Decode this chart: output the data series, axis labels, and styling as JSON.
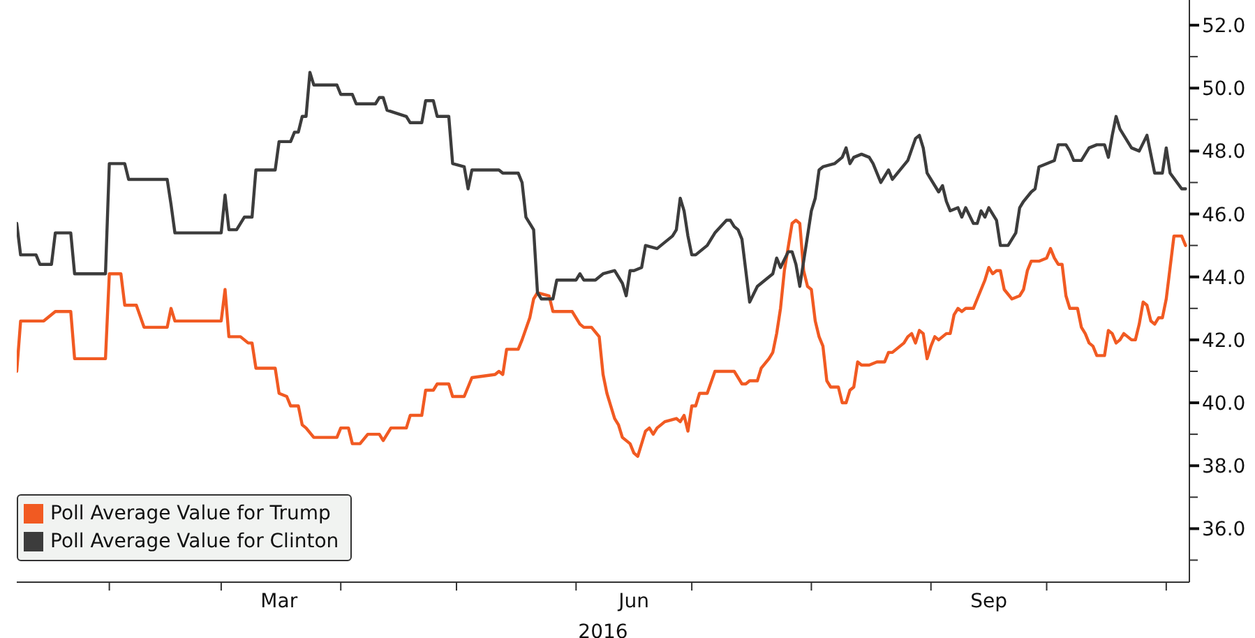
{
  "chart_data": {
    "type": "line",
    "xlabel": "2016",
    "legend": "bottom left",
    "xlim": [
      "2016-01-08",
      "2016-11-07"
    ],
    "xticks": [
      {
        "value": "2016-02-01",
        "label": null
      },
      {
        "value": "2016-03-01",
        "label": null
      },
      {
        "value": "2016-03-16",
        "label": "Mar"
      },
      {
        "value": "2016-04-01",
        "label": null
      },
      {
        "value": "2016-05-01",
        "label": null
      },
      {
        "value": "2016-06-01",
        "label": null
      },
      {
        "value": "2016-06-16",
        "label": "Jun"
      },
      {
        "value": "2016-07-01",
        "label": null
      },
      {
        "value": "2016-08-01",
        "label": null
      },
      {
        "value": "2016-09-01",
        "label": null
      },
      {
        "value": "2016-09-16",
        "label": "Sep"
      },
      {
        "value": "2016-10-01",
        "label": null
      },
      {
        "value": "2016-11-01",
        "label": null
      }
    ],
    "ylim": [
      34.3,
      52.8
    ],
    "yticks": [
      {
        "value": 35,
        "label": null
      },
      {
        "value": 36,
        "label": "36.0"
      },
      {
        "value": 37,
        "label": null
      },
      {
        "value": 38,
        "label": "38.0"
      },
      {
        "value": 39,
        "label": null
      },
      {
        "value": 40,
        "label": "40.0"
      },
      {
        "value": 41,
        "label": null
      },
      {
        "value": 42,
        "label": "42.0"
      },
      {
        "value": 43,
        "label": null
      },
      {
        "value": 44,
        "label": "44.0"
      },
      {
        "value": 45,
        "label": null
      },
      {
        "value": 46,
        "label": "46.0"
      },
      {
        "value": 47,
        "label": null
      },
      {
        "value": 48,
        "label": "48.0"
      },
      {
        "value": 49,
        "label": null
      },
      {
        "value": 50,
        "label": "50.0"
      },
      {
        "value": 51,
        "label": null
      },
      {
        "value": 52,
        "label": "52.0"
      }
    ],
    "series": [
      {
        "name": "Poll Average Value for Trump",
        "color": "#f15a22",
        "x": [
          "2016-01-08",
          "2016-01-09",
          "2016-01-13",
          "2016-01-15",
          "2016-01-18",
          "2016-01-22",
          "2016-01-23",
          "2016-01-31",
          "2016-02-01",
          "2016-02-04",
          "2016-02-05",
          "2016-02-08",
          "2016-02-10",
          "2016-02-16",
          "2016-02-17",
          "2016-02-18",
          "2016-03-01",
          "2016-03-02",
          "2016-03-03",
          "2016-03-06",
          "2016-03-08",
          "2016-03-09",
          "2016-03-10",
          "2016-03-15",
          "2016-03-16",
          "2016-03-18",
          "2016-03-19",
          "2016-03-21",
          "2016-03-22",
          "2016-03-23",
          "2016-03-25",
          "2016-03-31",
          "2016-04-01",
          "2016-04-03",
          "2016-04-04",
          "2016-04-06",
          "2016-04-08",
          "2016-04-11",
          "2016-04-12",
          "2016-04-14",
          "2016-04-18",
          "2016-04-19",
          "2016-04-22",
          "2016-04-23",
          "2016-04-25",
          "2016-04-26",
          "2016-04-29",
          "2016-04-30",
          "2016-05-03",
          "2016-05-04",
          "2016-05-05",
          "2016-05-11",
          "2016-05-12",
          "2016-05-13",
          "2016-05-14",
          "2016-05-17",
          "2016-05-18",
          "2016-05-20",
          "2016-05-21",
          "2016-05-22",
          "2016-05-25",
          "2016-05-26",
          "2016-05-31",
          "2016-06-02",
          "2016-06-03",
          "2016-06-05",
          "2016-06-07",
          "2016-06-08",
          "2016-06-09",
          "2016-06-10",
          "2016-06-11",
          "2016-06-12",
          "2016-06-13",
          "2016-06-15",
          "2016-06-16",
          "2016-06-17",
          "2016-06-19",
          "2016-06-20",
          "2016-06-21",
          "2016-06-22",
          "2016-06-24",
          "2016-06-27",
          "2016-06-28",
          "2016-06-29",
          "2016-06-30",
          "2016-07-01",
          "2016-07-02",
          "2016-07-03",
          "2016-07-05",
          "2016-07-07",
          "2016-07-12",
          "2016-07-13",
          "2016-07-14",
          "2016-07-15",
          "2016-07-16",
          "2016-07-18",
          "2016-07-19",
          "2016-07-21",
          "2016-07-22",
          "2016-07-23",
          "2016-07-24",
          "2016-07-25",
          "2016-07-27",
          "2016-07-28",
          "2016-07-29",
          "2016-07-30",
          "2016-07-31",
          "2016-08-01",
          "2016-08-02",
          "2016-08-03",
          "2016-08-04",
          "2016-08-05",
          "2016-08-06",
          "2016-08-08",
          "2016-08-09",
          "2016-08-10",
          "2016-08-11",
          "2016-08-12",
          "2016-08-13",
          "2016-08-14",
          "2016-08-16",
          "2016-08-18",
          "2016-08-20",
          "2016-08-21",
          "2016-08-22",
          "2016-08-25",
          "2016-08-26",
          "2016-08-27",
          "2016-08-28",
          "2016-08-29",
          "2016-08-30",
          "2016-08-31",
          "2016-09-01",
          "2016-09-02",
          "2016-09-03",
          "2016-09-05",
          "2016-09-06",
          "2016-09-07",
          "2016-09-08",
          "2016-09-09",
          "2016-09-10",
          "2016-09-12",
          "2016-09-13",
          "2016-09-15",
          "2016-09-16",
          "2016-09-17",
          "2016-09-18",
          "2016-09-19",
          "2016-09-20",
          "2016-09-22",
          "2016-09-24",
          "2016-09-25",
          "2016-09-26",
          "2016-09-27",
          "2016-09-28",
          "2016-09-29",
          "2016-10-01",
          "2016-10-02",
          "2016-10-03",
          "2016-10-04",
          "2016-10-05",
          "2016-10-06",
          "2016-10-07",
          "2016-10-09",
          "2016-10-10",
          "2016-10-11",
          "2016-10-12",
          "2016-10-13",
          "2016-10-14",
          "2016-10-16",
          "2016-10-17",
          "2016-10-18",
          "2016-10-19",
          "2016-10-20",
          "2016-10-21",
          "2016-10-22",
          "2016-10-23",
          "2016-10-24",
          "2016-10-25",
          "2016-10-26",
          "2016-10-27",
          "2016-10-28",
          "2016-10-29",
          "2016-10-30",
          "2016-10-31",
          "2016-11-01",
          "2016-11-02",
          "2016-11-03",
          "2016-11-04",
          "2016-11-05",
          "2016-11-06"
        ],
        "values": [
          41.0,
          42.6,
          42.6,
          42.6,
          42.9,
          42.9,
          41.4,
          41.4,
          44.1,
          44.1,
          43.1,
          43.1,
          42.4,
          42.4,
          43.0,
          42.6,
          42.6,
          43.6,
          42.1,
          42.1,
          41.9,
          41.9,
          41.1,
          41.1,
          40.3,
          40.2,
          39.9,
          39.9,
          39.3,
          39.2,
          38.9,
          38.9,
          39.2,
          39.2,
          38.7,
          38.7,
          39.0,
          39.0,
          38.8,
          39.2,
          39.2,
          39.6,
          39.6,
          40.4,
          40.4,
          40.6,
          40.6,
          40.2,
          40.2,
          40.5,
          40.8,
          40.9,
          41.0,
          40.9,
          41.7,
          41.7,
          42.0,
          42.7,
          43.3,
          43.5,
          43.4,
          42.9,
          42.9,
          42.5,
          42.4,
          42.4,
          42.1,
          40.9,
          40.3,
          39.9,
          39.5,
          39.3,
          38.9,
          38.7,
          38.4,
          38.3,
          39.1,
          39.2,
          39.0,
          39.2,
          39.4,
          39.5,
          39.4,
          39.6,
          39.1,
          39.9,
          39.9,
          40.3,
          40.3,
          41.0,
          41.0,
          40.8,
          40.6,
          40.6,
          40.7,
          40.7,
          41.1,
          41.4,
          41.6,
          42.2,
          43.0,
          44.2,
          45.7,
          45.8,
          45.7,
          44.2,
          43.7,
          43.6,
          42.6,
          42.1,
          41.8,
          40.7,
          40.5,
          40.5,
          40.0,
          40.0,
          40.4,
          40.5,
          41.3,
          41.2,
          41.2,
          41.3,
          41.3,
          41.6,
          41.6,
          41.9,
          42.1,
          42.2,
          41.9,
          42.3,
          42.2,
          41.4,
          41.8,
          42.1,
          42.0,
          42.2,
          42.2,
          42.8,
          43.0,
          42.9,
          43.0,
          43.0,
          43.3,
          43.9,
          44.3,
          44.1,
          44.2,
          44.2,
          43.6,
          43.3,
          43.4,
          43.6,
          44.2,
          44.5,
          44.5,
          44.5,
          44.6,
          44.9,
          44.6,
          44.4,
          44.4,
          43.4,
          43.0,
          43.0,
          42.4,
          42.2,
          41.9,
          41.8,
          41.5,
          41.5,
          42.3,
          42.2,
          41.9,
          42.0,
          42.2,
          42.1,
          42.0,
          42.0,
          42.5,
          43.2,
          43.1,
          42.6,
          42.5,
          42.7,
          42.7,
          43.3,
          44.3,
          45.3,
          45.3,
          45.3,
          45.0
        ]
      },
      {
        "name": "Poll Average Value for Clinton",
        "color": "#3c3c3c",
        "x": [
          "2016-01-08",
          "2016-01-09",
          "2016-01-13",
          "2016-01-14",
          "2016-01-17",
          "2016-01-18",
          "2016-01-22",
          "2016-01-23",
          "2016-01-31",
          "2016-02-01",
          "2016-02-05",
          "2016-02-06",
          "2016-02-16",
          "2016-02-17",
          "2016-02-18",
          "2016-03-01",
          "2016-03-02",
          "2016-03-03",
          "2016-03-05",
          "2016-03-07",
          "2016-03-09",
          "2016-03-10",
          "2016-03-15",
          "2016-03-16",
          "2016-03-19",
          "2016-03-20",
          "2016-03-21",
          "2016-03-22",
          "2016-03-23",
          "2016-03-24",
          "2016-03-25",
          "2016-03-31",
          "2016-04-01",
          "2016-04-04",
          "2016-04-05",
          "2016-04-10",
          "2016-04-11",
          "2016-04-12",
          "2016-04-13",
          "2016-04-18",
          "2016-04-19",
          "2016-04-22",
          "2016-04-23",
          "2016-04-25",
          "2016-04-26",
          "2016-04-29",
          "2016-04-30",
          "2016-05-03",
          "2016-05-04",
          "2016-05-05",
          "2016-05-12",
          "2016-05-13",
          "2016-05-17",
          "2016-05-18",
          "2016-05-19",
          "2016-05-21",
          "2016-05-22",
          "2016-05-23",
          "2016-05-26",
          "2016-05-27",
          "2016-06-01",
          "2016-06-02",
          "2016-06-03",
          "2016-06-06",
          "2016-06-08",
          "2016-06-11",
          "2016-06-13",
          "2016-06-14",
          "2016-06-15",
          "2016-06-16",
          "2016-06-18",
          "2016-06-19",
          "2016-06-22",
          "2016-06-23",
          "2016-06-26",
          "2016-06-27",
          "2016-06-28",
          "2016-06-29",
          "2016-06-30",
          "2016-07-01",
          "2016-07-02",
          "2016-07-05",
          "2016-07-07",
          "2016-07-10",
          "2016-07-11",
          "2016-07-12",
          "2016-07-13",
          "2016-07-14",
          "2016-07-16",
          "2016-07-18",
          "2016-07-19",
          "2016-07-22",
          "2016-07-23",
          "2016-07-24",
          "2016-07-26",
          "2016-07-27",
          "2016-07-28",
          "2016-07-29",
          "2016-07-31",
          "2016-08-01",
          "2016-08-02",
          "2016-08-03",
          "2016-08-04",
          "2016-08-07",
          "2016-08-09",
          "2016-08-10",
          "2016-08-11",
          "2016-08-12",
          "2016-08-14",
          "2016-08-16",
          "2016-08-17",
          "2016-08-18",
          "2016-08-19",
          "2016-08-21",
          "2016-08-22",
          "2016-08-24",
          "2016-08-26",
          "2016-08-28",
          "2016-08-29",
          "2016-08-30",
          "2016-08-31",
          "2016-09-02",
          "2016-09-03",
          "2016-09-04",
          "2016-09-05",
          "2016-09-06",
          "2016-09-08",
          "2016-09-09",
          "2016-09-10",
          "2016-09-12",
          "2016-09-13",
          "2016-09-14",
          "2016-09-15",
          "2016-09-16",
          "2016-09-18",
          "2016-09-19",
          "2016-09-21",
          "2016-09-23",
          "2016-09-24",
          "2016-09-25",
          "2016-09-27",
          "2016-09-28",
          "2016-09-29",
          "2016-10-01",
          "2016-10-03",
          "2016-10-04",
          "2016-10-06",
          "2016-10-07",
          "2016-10-08",
          "2016-10-10",
          "2016-10-12",
          "2016-10-14",
          "2016-10-16",
          "2016-10-17",
          "2016-10-18",
          "2016-10-19",
          "2016-10-20",
          "2016-10-22",
          "2016-10-23",
          "2016-10-25",
          "2016-10-27",
          "2016-10-29",
          "2016-10-31",
          "2016-11-01",
          "2016-11-02",
          "2016-11-05",
          "2016-11-06"
        ],
        "values": [
          45.7,
          44.7,
          44.7,
          44.4,
          44.4,
          45.4,
          45.4,
          44.1,
          44.1,
          47.6,
          47.6,
          47.1,
          47.1,
          46.3,
          45.4,
          45.4,
          46.6,
          45.5,
          45.5,
          45.9,
          45.9,
          47.4,
          47.4,
          48.3,
          48.3,
          48.6,
          48.6,
          49.1,
          49.1,
          50.5,
          50.1,
          50.1,
          49.8,
          49.8,
          49.5,
          49.5,
          49.7,
          49.7,
          49.3,
          49.1,
          48.9,
          48.9,
          49.6,
          49.6,
          49.1,
          49.1,
          47.6,
          47.5,
          46.8,
          47.4,
          47.4,
          47.3,
          47.3,
          47.0,
          45.9,
          45.5,
          43.5,
          43.3,
          43.3,
          43.9,
          43.9,
          44.1,
          43.9,
          43.9,
          44.1,
          44.2,
          43.8,
          43.4,
          44.2,
          44.2,
          44.3,
          45.0,
          44.9,
          45.0,
          45.3,
          45.5,
          46.5,
          46.1,
          45.3,
          44.7,
          44.7,
          45.0,
          45.4,
          45.8,
          45.8,
          45.6,
          45.5,
          45.2,
          43.2,
          43.7,
          43.8,
          44.1,
          44.6,
          44.3,
          44.8,
          44.8,
          44.4,
          43.7,
          45.3,
          46.1,
          46.5,
          47.4,
          47.5,
          47.6,
          47.8,
          48.1,
          47.6,
          47.8,
          47.9,
          47.8,
          47.6,
          47.3,
          47.0,
          47.4,
          47.1,
          47.4,
          47.7,
          48.4,
          48.5,
          48.1,
          47.3,
          46.9,
          46.7,
          46.9,
          46.4,
          46.1,
          46.2,
          45.9,
          46.2,
          45.7,
          45.7,
          46.1,
          45.9,
          46.2,
          45.8,
          45.0,
          45.0,
          45.4,
          46.2,
          46.4,
          46.7,
          46.8,
          47.5,
          47.6,
          47.7,
          48.2,
          48.2,
          48.0,
          47.7,
          47.7,
          48.1,
          48.2,
          48.2,
          47.8,
          48.5,
          49.1,
          48.7,
          48.3,
          48.1,
          48.0,
          48.5,
          47.3,
          47.3,
          48.1,
          47.3,
          46.8,
          46.8
        ]
      }
    ]
  }
}
